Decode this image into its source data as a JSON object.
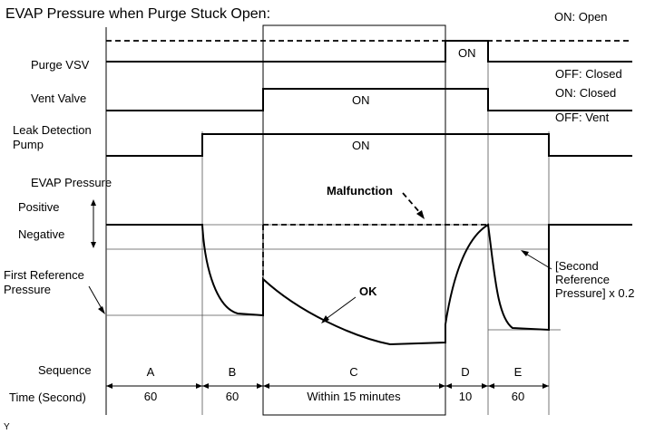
{
  "title": "EVAP Pressure when Purge Stuck Open:",
  "rows": {
    "purge_vsv": "Purge VSV",
    "vent_valve": "Vent Valve",
    "leak_pump_1": "Leak Detection",
    "leak_pump_2": "Pump",
    "evap_pressure": "EVAP Pressure",
    "positive": "Positive",
    "negative": "Negative",
    "first_ref_1": "First Reference",
    "first_ref_2": "Pressure",
    "sequence": "Sequence",
    "time": "Time (Second)"
  },
  "states": {
    "purge_on": "ON: Open",
    "purge_off": "OFF: Closed",
    "vent_on": "ON: Closed",
    "vent_off": "OFF: Vent",
    "on": "ON"
  },
  "annotations": {
    "malfunction": "Malfunction",
    "ok": "OK",
    "second_ref_1": "[Second",
    "second_ref_2": "Reference",
    "second_ref_3": "Pressure] x 0.2"
  },
  "sequence": [
    "A",
    "B",
    "C",
    "D",
    "E"
  ],
  "times": [
    "60",
    "60",
    "Within 15 minutes",
    "10",
    "60"
  ],
  "footer": "Y"
}
